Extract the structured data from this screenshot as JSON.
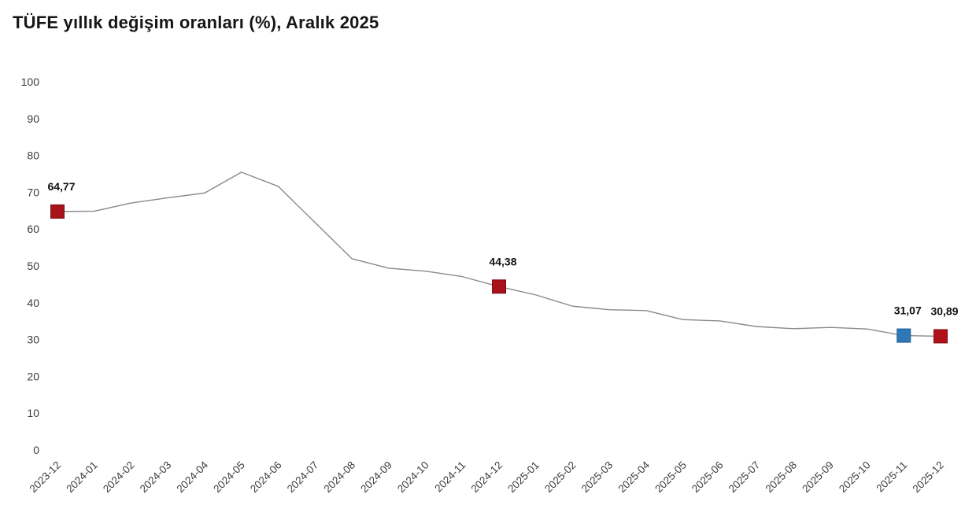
{
  "title": "TÜFE yıllık değişim oranları (%), Aralık 2025",
  "chart_data": {
    "type": "line",
    "title": "TÜFE yıllık değişim oranları (%), Aralık 2025",
    "xlabel": "",
    "ylabel": "",
    "ylim": [
      0,
      100
    ],
    "y_ticks": [
      100,
      90,
      80,
      70,
      60,
      50,
      40,
      30,
      20,
      10,
      0
    ],
    "grid": false,
    "legend": "none",
    "line_color": "#8a8a8a",
    "background_color": "#ffffff",
    "x": [
      "2023-12",
      "2024-01",
      "2024-02",
      "2024-03",
      "2024-04",
      "2024-05",
      "2024-06",
      "2024-07",
      "2024-08",
      "2024-09",
      "2024-10",
      "2024-11",
      "2024-12",
      "2025-01",
      "2025-02",
      "2025-03",
      "2025-04",
      "2025-05",
      "2025-06",
      "2025-07",
      "2025-08",
      "2025-09",
      "2025-10",
      "2025-11",
      "2025-12"
    ],
    "values": [
      64.77,
      64.86,
      67.07,
      68.5,
      69.8,
      75.45,
      71.6,
      61.78,
      51.97,
      49.38,
      48.58,
      47.09,
      44.38,
      42.12,
      39.05,
      38.1,
      37.86,
      35.41,
      35.05,
      33.52,
      32.95,
      33.29,
      32.87,
      31.07,
      30.89
    ],
    "annotated_points": [
      {
        "x": "2023-12",
        "index": 0,
        "value": 64.77,
        "label": "64,77",
        "marker": "square",
        "marker_color": "#a8121a",
        "marker_border": "#7d0c12"
      },
      {
        "x": "2024-12",
        "index": 12,
        "value": 44.38,
        "label": "44,38",
        "marker": "square",
        "marker_color": "#a8121a",
        "marker_border": "#7d0c12"
      },
      {
        "x": "2025-11",
        "index": 23,
        "value": 31.07,
        "label": "31,07",
        "marker": "square",
        "marker_color": "#2e78b8",
        "marker_border": "#1f5c93"
      },
      {
        "x": "2025-12",
        "index": 24,
        "value": 30.89,
        "label": "30,89",
        "marker": "square",
        "marker_color": "#b01218",
        "marker_border": "#7d0c12"
      }
    ]
  }
}
